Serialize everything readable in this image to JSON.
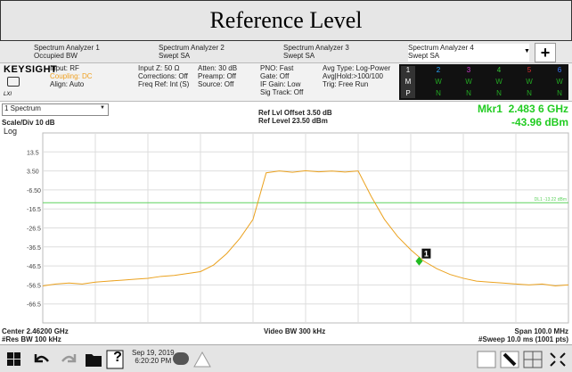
{
  "header": {
    "title": "Reference Level"
  },
  "tabs": [
    {
      "name": "Spectrum Analyzer 1",
      "mode": "Occupied BW"
    },
    {
      "name": "Spectrum Analyzer 2",
      "mode": "Swept SA"
    },
    {
      "name": "Spectrum Analyzer 3",
      "mode": "Swept SA"
    },
    {
      "name": "Spectrum Analyzer 4",
      "mode": "Swept SA"
    }
  ],
  "add_button": "+",
  "brand": {
    "name": "KEYSIGHT",
    "sub": "LXI"
  },
  "settings": [
    [
      "Input: RF",
      "Coupling: DC",
      "Align: Auto"
    ],
    [
      "Input Z: 50 Ω",
      "Corrections: Off",
      "Freq Ref: Int (S)"
    ],
    [
      "Atten: 30 dB",
      "Preamp: Off",
      "Source: Off"
    ],
    [
      "PNO: Fast",
      "Gate: Off",
      "IF Gain: Low",
      "Sig Track: Off"
    ],
    [
      "Avg Type: Log-Power",
      "Avg|Hold:>100/100",
      "Trig: Free Run"
    ]
  ],
  "traces": {
    "numbers": [
      "1",
      "2",
      "3",
      "4",
      "5",
      "6"
    ],
    "modes": [
      "M",
      "W",
      "W",
      "W",
      "W",
      "W"
    ],
    "detectors": [
      "P",
      "N",
      "N",
      "N",
      "N",
      "N"
    ]
  },
  "window_select": "1 Spectrum",
  "ref": {
    "offset": "Ref Lvl Offset 3.50 dB",
    "level": "Ref Level 23.50 dBm"
  },
  "scale": {
    "div": "Scale/Div 10 dB",
    "mode": "Log"
  },
  "chart_data": {
    "type": "line",
    "color": "#eba21f",
    "x": [
      2.412,
      2.4145,
      2.417,
      2.4195,
      2.422,
      2.4245,
      2.427,
      2.4295,
      2.432,
      2.4345,
      2.437,
      2.4395,
      2.442,
      2.4445,
      2.447,
      2.4495,
      2.452,
      2.4545,
      2.457,
      2.4595,
      2.462,
      2.4645,
      2.467,
      2.4695,
      2.472,
      2.4745,
      2.477,
      2.4795,
      2.482,
      2.4845,
      2.487,
      2.4895,
      2.492,
      2.4945,
      2.497,
      2.4995,
      2.502,
      2.5045,
      2.507,
      2.5095,
      2.512
    ],
    "values": [
      -57,
      -56,
      -55.5,
      -56,
      -55,
      -54.5,
      -54,
      -53.5,
      -53,
      -52,
      -51.5,
      -50.5,
      -49.5,
      -46,
      -40,
      -32,
      -22,
      2.5,
      3.5,
      2.8,
      3.6,
      3.0,
      3.4,
      2.9,
      3.5,
      -10,
      -22,
      -31,
      -38,
      -44,
      -48,
      -51,
      -53,
      -54.5,
      -55,
      -55.5,
      -56,
      -56.5,
      -56,
      -57,
      -56.5
    ],
    "xlim": [
      2.412,
      2.512
    ],
    "xticks": [
      2.422,
      2.432,
      2.442,
      2.452,
      2.462,
      2.472,
      2.482,
      2.492,
      2.502
    ],
    "ylim": [
      -76.5,
      23.5
    ],
    "yticks": [
      13.5,
      {
        "value": 3.5,
        "label": "3.50"
      },
      {
        "value": -6.5,
        "label": "-6.50"
      },
      -16.5,
      -26.5,
      -36.5,
      -46.5,
      -56.5,
      -66.5
    ],
    "grid": true,
    "display_line": {
      "value": -13.22,
      "label": "DL1 -13.22 dBm",
      "color": "#5fd25f"
    },
    "marker": {
      "name": "Mkr1",
      "number": "1",
      "x": 2.4836,
      "x_label": "2.483 6 GHz",
      "y": -43.96,
      "y_label": "-43.96 dBm",
      "color": "#22bb22"
    }
  },
  "footer": {
    "center": "Center 2.46200 GHz",
    "rbw": "#Res BW 100 kHz",
    "vbw": "Video BW 300 kHz",
    "span": "Span 100.0 MHz",
    "sweep": "#Sweep 10.0 ms (1001 pts)"
  },
  "taskbar": {
    "help": "?",
    "date": "Sep 19, 2019",
    "time": "6:20:20 PM"
  }
}
